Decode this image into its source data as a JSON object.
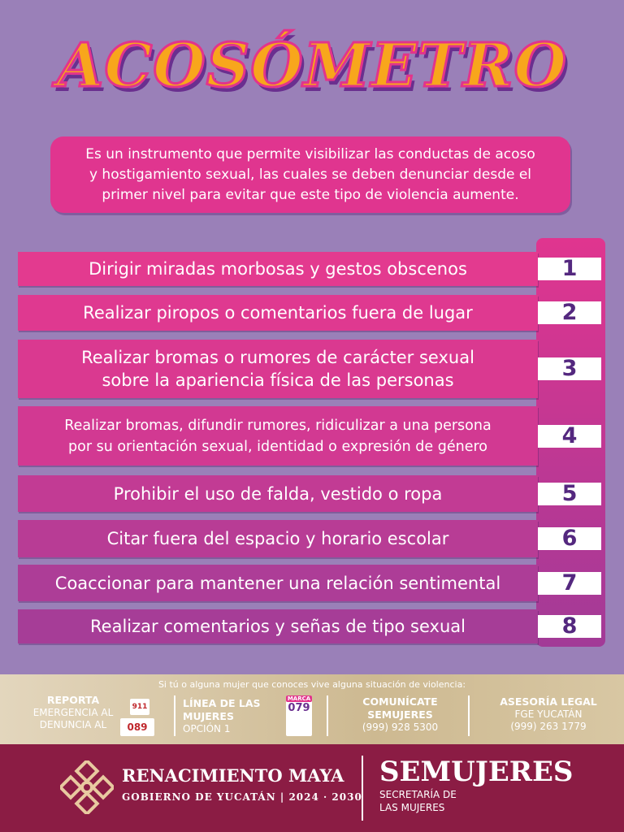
{
  "header": {
    "title": "ACOSÓMETRO"
  },
  "intro": {
    "lines": [
      "Es un instrumento que permite visibilizar las conductas de acoso",
      "y hostigamiento sexual, las cuales se deben denunciar desde el",
      "primer nivel para evitar que este tipo de violencia aumente."
    ]
  },
  "items": [
    {
      "lines": [
        "Dirigir miradas morbosas y gestos obscenos"
      ],
      "number": 1
    },
    {
      "lines": [
        "Realizar piropos o comentarios fuera de lugar"
      ],
      "number": 2
    },
    {
      "lines": [
        "Realizar bromas o rumores de carácter sexual",
        "sobre la apariencia física de las personas"
      ],
      "number": 3
    },
    {
      "lines": [
        "Realizar bromas, difundir rumores, ridiculizar a una persona",
        "por su orientación sexual, identidad o expresión de género"
      ],
      "number": 4
    },
    {
      "lines": [
        "Prohibir el uso de falda, vestido o ropa"
      ],
      "number": 5
    },
    {
      "lines": [
        "Citar fuera del espacio y horario escolar"
      ],
      "number": 6
    },
    {
      "lines": [
        "Coaccionar para mantener una relación sentimental"
      ],
      "number": 7
    },
    {
      "lines": [
        "Realizar comentarios y señas de tipo sexual"
      ],
      "number": 8
    }
  ],
  "contacts": {
    "intro": "Si tú o alguna mujer que conoces vive alguna situación de violencia:",
    "report": {
      "title": "REPORTA",
      "line1": "EMERGENCIA AL",
      "line2": "DENUNCIA AL",
      "emergency": "911",
      "complaint": "089"
    },
    "hotline": {
      "title": "LÍNEA DE LAS",
      "title2": "MUJERES",
      "option": "OPCIÓN 1",
      "badge_top": "MARCA",
      "badge_number": "079"
    },
    "semujeres": {
      "title": "COMUNÍCATE",
      "title2": "SEMUJERES",
      "phone": "(999) 928 5300"
    },
    "legal": {
      "title": "ASESORÍA LEGAL",
      "org": "FGE YUCATÁN",
      "phone": "(999) 263 1779"
    }
  },
  "footer": {
    "brand": "RENACIMIENTO MAYA",
    "government": "GOBIERNO DE YUCATÁN",
    "year_start": "2024",
    "year_end": "2030",
    "agency": "SEMUJERES",
    "agency_line1": "SECRETARÍA DE",
    "agency_line2": "LAS MUJERES"
  }
}
